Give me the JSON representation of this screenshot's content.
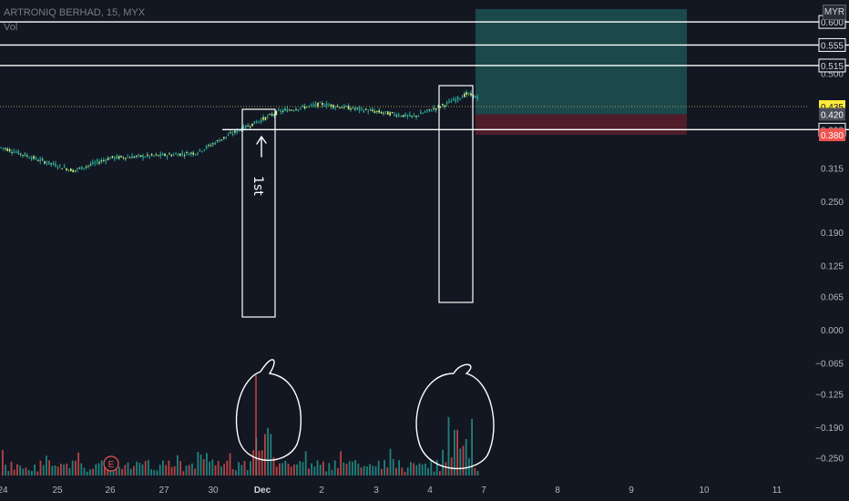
{
  "header": {
    "symbol": "ARTRONIQ BERHAD, 15, MYX",
    "volume_label": "Vol",
    "currency": "MYR"
  },
  "colors": {
    "background": "#131722",
    "up": "#26a69a",
    "down": "#ef5350",
    "price_axis_text": "#b2b5be",
    "annotation": "#ffffff",
    "candle_body": "#e8ea6a",
    "target_zone": "#1f5a5a",
    "stop_zone": "#5a1f2b",
    "last_price_tag": "#ffeb3b",
    "stop_tag": "#ef5350",
    "entry_tag": "#4a4e5a"
  },
  "chart_data": {
    "type": "candlestick",
    "symbol": "ARTRONIQ BERHAD",
    "timeframe": "15",
    "exchange": "MYX",
    "ylim": [
      -0.27,
      0.625
    ],
    "x_ticks": [
      "24",
      "25",
      "26",
      "27",
      "30",
      "Dec",
      "2",
      "3",
      "4",
      "7",
      "8",
      "9",
      "10",
      "11"
    ],
    "y_ticks": [
      0.5,
      0.315,
      0.25,
      0.19,
      0.125,
      0.065,
      0.0,
      -0.065,
      -0.125,
      -0.19,
      -0.25
    ],
    "y_tick_labels": [
      "0.500",
      "0.315",
      "0.250",
      "0.190",
      "0.125",
      "0.065",
      "0.000",
      "−0.065",
      "−0.125",
      "−0.190",
      "−0.250"
    ],
    "horizontal_lines": [
      {
        "value": 0.6,
        "label": "0.600"
      },
      {
        "value": 0.555,
        "label": "0.555"
      },
      {
        "value": 0.515,
        "label": "0.515"
      },
      {
        "value": 0.39,
        "label": "0.390"
      }
    ],
    "price_tags": [
      {
        "value": 0.435,
        "label": "0.435",
        "kind": "last"
      },
      {
        "value": 0.42,
        "label": "0.420",
        "kind": "entry"
      },
      {
        "value": 0.38,
        "label": "0.380",
        "kind": "stop"
      }
    ],
    "position": {
      "entry": 0.42,
      "target": 0.625,
      "stop": 0.38
    },
    "price_path": [
      {
        "x": "24",
        "y": 0.355
      },
      {
        "x": "25",
        "y": 0.33
      },
      {
        "x": "25",
        "y": 0.31
      },
      {
        "x": "26",
        "y": 0.335
      },
      {
        "x": "27",
        "y": 0.34
      },
      {
        "x": "30",
        "y": 0.345
      },
      {
        "x": "30",
        "y": 0.38
      },
      {
        "x": "Dec",
        "y": 0.395
      },
      {
        "x": "Dec",
        "y": 0.425
      },
      {
        "x": "2",
        "y": 0.44
      },
      {
        "x": "3",
        "y": 0.425
      },
      {
        "x": "4",
        "y": 0.415
      },
      {
        "x": "4",
        "y": 0.44
      },
      {
        "x": "7",
        "y": 0.46
      },
      {
        "x": "7",
        "y": 0.435
      }
    ],
    "annotations": [
      {
        "type": "box",
        "label": ""
      },
      {
        "type": "box",
        "label": ""
      },
      {
        "type": "arrow",
        "label": "1st"
      },
      {
        "type": "circle",
        "label": ""
      },
      {
        "type": "circle",
        "label": ""
      },
      {
        "type": "event",
        "label": "E"
      }
    ]
  }
}
